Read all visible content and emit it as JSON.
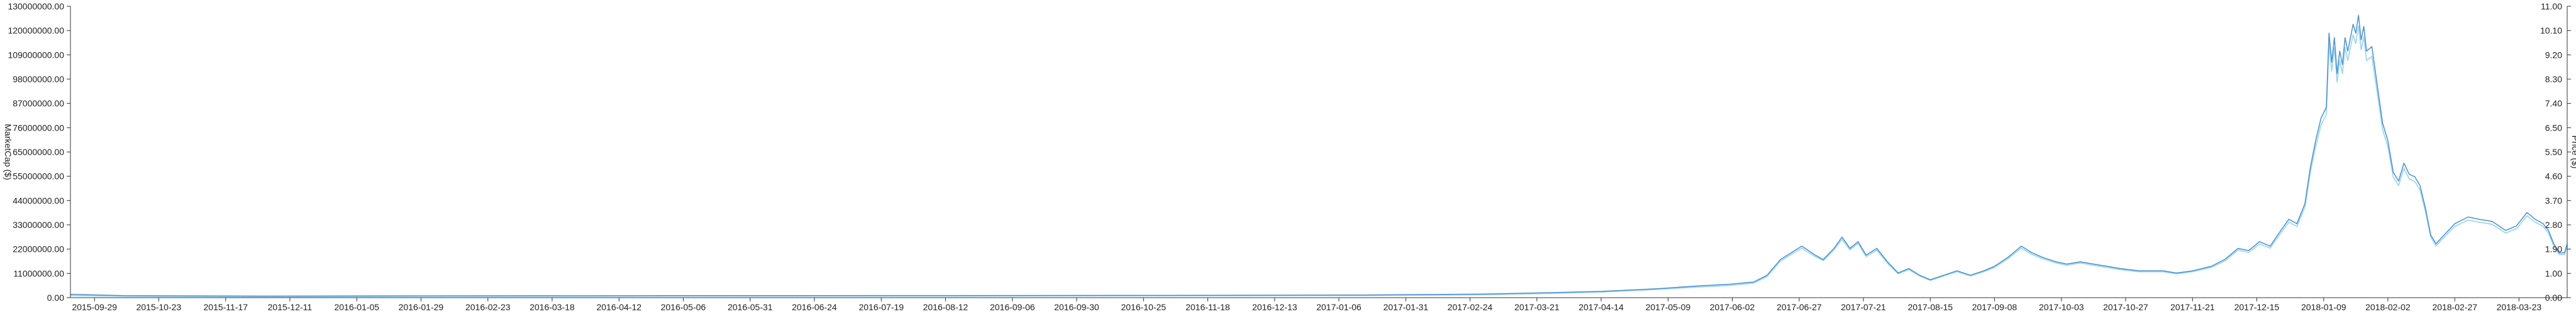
{
  "chart_data": {
    "type": "line",
    "title": "",
    "xlabel": "",
    "ylabel_left": "MarketCap ($)",
    "ylabel_right": "Price ($)",
    "grid": false,
    "legend": "none",
    "x_ticks": [
      "2015-09-29",
      "2015-10-23",
      "2015-11-17",
      "2015-12-11",
      "2016-01-05",
      "2016-01-29",
      "2016-02-23",
      "2016-03-18",
      "2016-04-12",
      "2016-05-06",
      "2016-05-31",
      "2016-06-24",
      "2016-07-19",
      "2016-08-12",
      "2016-09-06",
      "2016-09-30",
      "2016-10-25",
      "2016-11-18",
      "2016-12-13",
      "2017-01-06",
      "2017-01-31",
      "2017-02-24",
      "2017-03-21",
      "2017-04-14",
      "2017-05-09",
      "2017-06-02",
      "2017-06-27",
      "2017-07-21",
      "2017-08-15",
      "2017-09-08",
      "2017-10-03",
      "2017-10-27",
      "2017-11-21",
      "2017-12-15",
      "2018-01-09",
      "2018-02-02",
      "2018-02-27",
      "2018-03-23"
    ],
    "y_left_ticks": [
      "0.00",
      "11000000.00",
      "22000000.00",
      "33000000.00",
      "44000000.00",
      "55000000.00",
      "65000000.00",
      "76000000.00",
      "87000000.00",
      "98000000.00",
      "109000000.00",
      "120000000.00",
      "130000000.00"
    ],
    "y_right_ticks": [
      "0.00",
      "1.00",
      "1.90",
      "2.80",
      "3.70",
      "4.60",
      "5.50",
      "6.50",
      "7.40",
      "8.30",
      "9.20",
      "10.10",
      "11.00"
    ],
    "ylim_left": [
      0,
      130000000
    ],
    "ylim_right": [
      0,
      11
    ],
    "x_range": [
      "2015-09-20",
      "2018-04-10"
    ],
    "colors": {
      "marketcap": "#4a8fd1",
      "price": "#9fd8ee",
      "axis": "#333333"
    },
    "series": [
      {
        "key": "marketcap",
        "axis": "left",
        "points": [
          [
            "2015-09-20",
            1500000
          ],
          [
            "2015-10-10",
            900000
          ],
          [
            "2015-12-01",
            700000
          ],
          [
            "2016-02-01",
            800000
          ],
          [
            "2016-05-01",
            900000
          ],
          [
            "2016-08-01",
            950000
          ],
          [
            "2016-11-01",
            1000000
          ],
          [
            "2017-01-15",
            1200000
          ],
          [
            "2017-03-01",
            1600000
          ],
          [
            "2017-03-25",
            2200000
          ],
          [
            "2017-04-14",
            2800000
          ],
          [
            "2017-05-05",
            4000000
          ],
          [
            "2017-05-20",
            5200000
          ],
          [
            "2017-06-01",
            6000000
          ],
          [
            "2017-06-10",
            7000000
          ],
          [
            "2017-06-15",
            10000000
          ],
          [
            "2017-06-20",
            17000000
          ],
          [
            "2017-06-24",
            20000000
          ],
          [
            "2017-06-28",
            23000000
          ],
          [
            "2017-07-03",
            19000000
          ],
          [
            "2017-07-06",
            17000000
          ],
          [
            "2017-07-10",
            22000000
          ],
          [
            "2017-07-13",
            27000000
          ],
          [
            "2017-07-16",
            22000000
          ],
          [
            "2017-07-19",
            25000000
          ],
          [
            "2017-07-22",
            19000000
          ],
          [
            "2017-07-26",
            22000000
          ],
          [
            "2017-07-30",
            16000000
          ],
          [
            "2017-08-03",
            11000000
          ],
          [
            "2017-08-07",
            13000000
          ],
          [
            "2017-08-11",
            10000000
          ],
          [
            "2017-08-15",
            8000000
          ],
          [
            "2017-08-20",
            10000000
          ],
          [
            "2017-08-25",
            12000000
          ],
          [
            "2017-08-30",
            10000000
          ],
          [
            "2017-09-04",
            12000000
          ],
          [
            "2017-09-08",
            14000000
          ],
          [
            "2017-09-13",
            18000000
          ],
          [
            "2017-09-18",
            23000000
          ],
          [
            "2017-09-22",
            20000000
          ],
          [
            "2017-09-26",
            18000000
          ],
          [
            "2017-10-01",
            16000000
          ],
          [
            "2017-10-05",
            15000000
          ],
          [
            "2017-10-10",
            16000000
          ],
          [
            "2017-10-15",
            15000000
          ],
          [
            "2017-10-20",
            14000000
          ],
          [
            "2017-10-25",
            13000000
          ],
          [
            "2017-11-01",
            12000000
          ],
          [
            "2017-11-10",
            12000000
          ],
          [
            "2017-11-15",
            11000000
          ],
          [
            "2017-11-21",
            12000000
          ],
          [
            "2017-11-28",
            14000000
          ],
          [
            "2017-12-03",
            17000000
          ],
          [
            "2017-12-08",
            22000000
          ],
          [
            "2017-12-12",
            21000000
          ],
          [
            "2017-12-16",
            25000000
          ],
          [
            "2017-12-20",
            23000000
          ],
          [
            "2017-12-24",
            30000000
          ],
          [
            "2017-12-27",
            35000000
          ],
          [
            "2017-12-30",
            33000000
          ],
          [
            "2018-01-02",
            42000000
          ],
          [
            "2018-01-04",
            58000000
          ],
          [
            "2018-01-06",
            70000000
          ],
          [
            "2018-01-08",
            80000000
          ],
          [
            "2018-01-10",
            85000000
          ],
          [
            "2018-01-11",
            118000000
          ],
          [
            "2018-01-12",
            105000000
          ],
          [
            "2018-01-13",
            116000000
          ],
          [
            "2018-01-14",
            100000000
          ],
          [
            "2018-01-15",
            110000000
          ],
          [
            "2018-01-16",
            104000000
          ],
          [
            "2018-01-17",
            116000000
          ],
          [
            "2018-01-18",
            110000000
          ],
          [
            "2018-01-20",
            122000000
          ],
          [
            "2018-01-21",
            118000000
          ],
          [
            "2018-01-22",
            126000000
          ],
          [
            "2018-01-23",
            115000000
          ],
          [
            "2018-01-24",
            121000000
          ],
          [
            "2018-01-25",
            110000000
          ],
          [
            "2018-01-27",
            112000000
          ],
          [
            "2018-01-29",
            95000000
          ],
          [
            "2018-01-31",
            78000000
          ],
          [
            "2018-02-02",
            70000000
          ],
          [
            "2018-02-04",
            56000000
          ],
          [
            "2018-02-06",
            52000000
          ],
          [
            "2018-02-08",
            60000000
          ],
          [
            "2018-02-10",
            55000000
          ],
          [
            "2018-02-12",
            54000000
          ],
          [
            "2018-02-14",
            50000000
          ],
          [
            "2018-02-16",
            40000000
          ],
          [
            "2018-02-18",
            28000000
          ],
          [
            "2018-02-20",
            24000000
          ],
          [
            "2018-02-23",
            28000000
          ],
          [
            "2018-02-27",
            33000000
          ],
          [
            "2018-03-04",
            36000000
          ],
          [
            "2018-03-08",
            35000000
          ],
          [
            "2018-03-13",
            34000000
          ],
          [
            "2018-03-18",
            30000000
          ],
          [
            "2018-03-22",
            32000000
          ],
          [
            "2018-03-26",
            38000000
          ],
          [
            "2018-03-29",
            35000000
          ],
          [
            "2018-04-01",
            33000000
          ],
          [
            "2018-04-03",
            30000000
          ],
          [
            "2018-04-05",
            24000000
          ],
          [
            "2018-04-07",
            20000000
          ],
          [
            "2018-04-09",
            20000000
          ],
          [
            "2018-04-10",
            24000000
          ]
        ]
      },
      {
        "key": "price",
        "axis": "right",
        "points": [
          [
            "2015-09-20",
            0.08
          ],
          [
            "2015-10-10",
            0.05
          ],
          [
            "2015-12-01",
            0.04
          ],
          [
            "2016-02-01",
            0.05
          ],
          [
            "2016-05-01",
            0.06
          ],
          [
            "2016-08-01",
            0.06
          ],
          [
            "2016-11-01",
            0.07
          ],
          [
            "2017-01-15",
            0.08
          ],
          [
            "2017-03-01",
            0.11
          ],
          [
            "2017-03-25",
            0.16
          ],
          [
            "2017-04-14",
            0.21
          ],
          [
            "2017-05-05",
            0.31
          ],
          [
            "2017-05-20",
            0.4
          ],
          [
            "2017-06-01",
            0.46
          ],
          [
            "2017-06-10",
            0.55
          ],
          [
            "2017-06-15",
            0.8
          ],
          [
            "2017-06-20",
            1.38
          ],
          [
            "2017-06-24",
            1.63
          ],
          [
            "2017-06-28",
            1.87
          ],
          [
            "2017-07-03",
            1.55
          ],
          [
            "2017-07-06",
            1.4
          ],
          [
            "2017-07-10",
            1.8
          ],
          [
            "2017-07-13",
            2.2
          ],
          [
            "2017-07-16",
            1.8
          ],
          [
            "2017-07-19",
            2.05
          ],
          [
            "2017-07-22",
            1.55
          ],
          [
            "2017-07-26",
            1.8
          ],
          [
            "2017-07-30",
            1.3
          ],
          [
            "2017-08-03",
            0.9
          ],
          [
            "2017-08-07",
            1.06
          ],
          [
            "2017-08-11",
            0.82
          ],
          [
            "2017-08-15",
            0.65
          ],
          [
            "2017-08-20",
            0.82
          ],
          [
            "2017-08-25",
            0.98
          ],
          [
            "2017-08-30",
            0.82
          ],
          [
            "2017-09-04",
            0.98
          ],
          [
            "2017-09-08",
            1.14
          ],
          [
            "2017-09-13",
            1.47
          ],
          [
            "2017-09-18",
            1.87
          ],
          [
            "2017-09-22",
            1.63
          ],
          [
            "2017-09-26",
            1.47
          ],
          [
            "2017-10-01",
            1.31
          ],
          [
            "2017-10-05",
            1.22
          ],
          [
            "2017-10-10",
            1.31
          ],
          [
            "2017-10-15",
            1.22
          ],
          [
            "2017-10-20",
            1.14
          ],
          [
            "2017-10-25",
            1.06
          ],
          [
            "2017-11-01",
            0.98
          ],
          [
            "2017-11-10",
            0.98
          ],
          [
            "2017-11-15",
            0.9
          ],
          [
            "2017-11-21",
            0.98
          ],
          [
            "2017-11-28",
            1.14
          ],
          [
            "2017-12-03",
            1.38
          ],
          [
            "2017-12-08",
            1.8
          ],
          [
            "2017-12-12",
            1.71
          ],
          [
            "2017-12-16",
            2.03
          ],
          [
            "2017-12-20",
            1.87
          ],
          [
            "2017-12-24",
            2.44
          ],
          [
            "2017-12-27",
            2.85
          ],
          [
            "2017-12-30",
            2.69
          ],
          [
            "2018-01-02",
            3.42
          ],
          [
            "2018-01-04",
            4.72
          ],
          [
            "2018-01-06",
            5.7
          ],
          [
            "2018-01-08",
            6.51
          ],
          [
            "2018-01-10",
            6.92
          ],
          [
            "2018-01-11",
            9.6
          ],
          [
            "2018-01-12",
            8.55
          ],
          [
            "2018-01-13",
            9.44
          ],
          [
            "2018-01-14",
            8.14
          ],
          [
            "2018-01-15",
            8.95
          ],
          [
            "2018-01-16",
            8.46
          ],
          [
            "2018-01-17",
            9.44
          ],
          [
            "2018-01-18",
            8.95
          ],
          [
            "2018-01-20",
            9.93
          ],
          [
            "2018-01-21",
            9.6
          ],
          [
            "2018-01-22",
            10.25
          ],
          [
            "2018-01-23",
            9.36
          ],
          [
            "2018-01-24",
            9.85
          ],
          [
            "2018-01-25",
            8.95
          ],
          [
            "2018-01-27",
            9.11
          ],
          [
            "2018-01-29",
            7.73
          ],
          [
            "2018-01-31",
            6.35
          ],
          [
            "2018-02-02",
            5.7
          ],
          [
            "2018-02-04",
            4.56
          ],
          [
            "2018-02-06",
            4.23
          ],
          [
            "2018-02-08",
            4.88
          ],
          [
            "2018-02-10",
            4.48
          ],
          [
            "2018-02-12",
            4.39
          ],
          [
            "2018-02-14",
            4.07
          ],
          [
            "2018-02-16",
            3.26
          ],
          [
            "2018-02-18",
            2.28
          ],
          [
            "2018-02-20",
            1.95
          ],
          [
            "2018-02-23",
            2.28
          ],
          [
            "2018-02-27",
            2.69
          ],
          [
            "2018-03-04",
            2.93
          ],
          [
            "2018-03-08",
            2.85
          ],
          [
            "2018-03-13",
            2.77
          ],
          [
            "2018-03-18",
            2.44
          ],
          [
            "2018-03-22",
            2.6
          ],
          [
            "2018-03-26",
            3.09
          ],
          [
            "2018-03-29",
            2.85
          ],
          [
            "2018-04-01",
            2.69
          ],
          [
            "2018-04-03",
            2.44
          ],
          [
            "2018-04-05",
            1.95
          ],
          [
            "2018-04-07",
            1.63
          ],
          [
            "2018-04-09",
            1.63
          ],
          [
            "2018-04-10",
            1.95
          ]
        ]
      }
    ]
  }
}
